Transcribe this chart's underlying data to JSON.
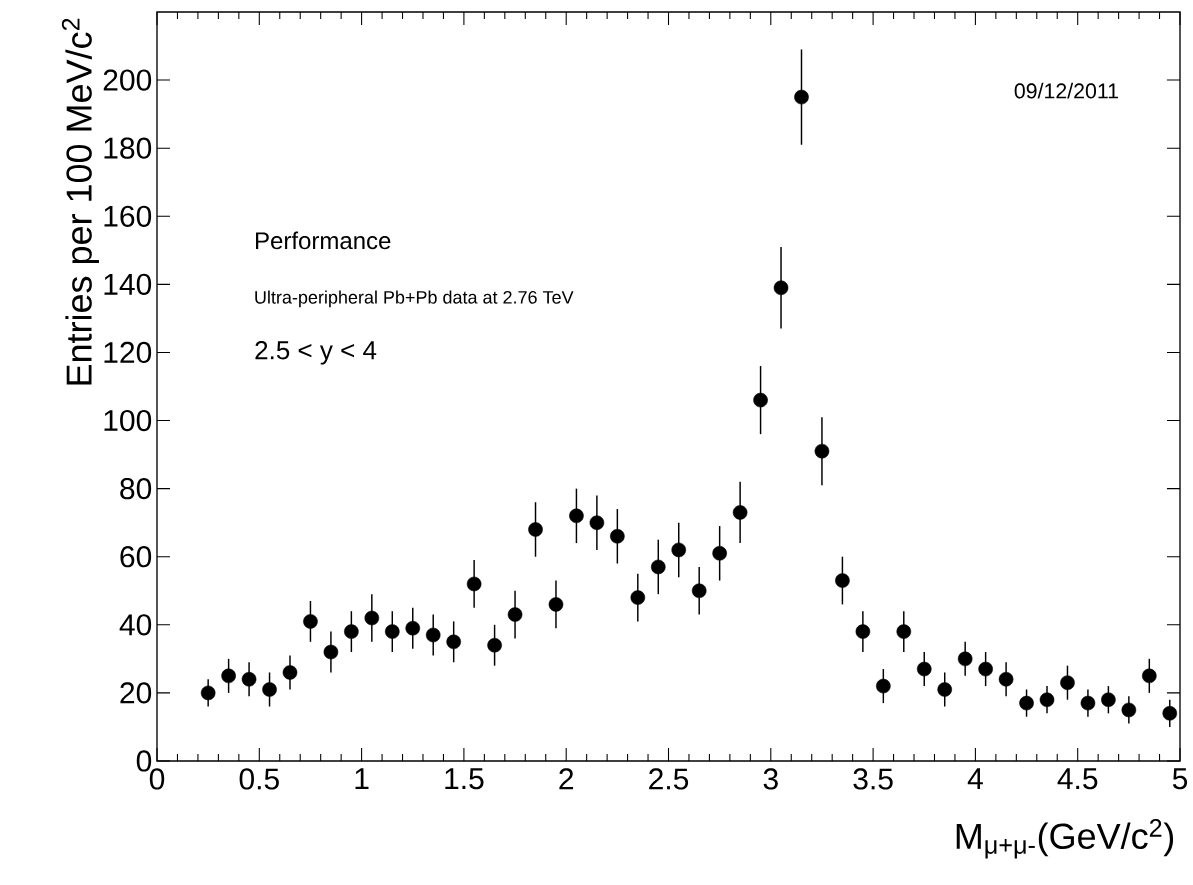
{
  "chart_data": {
    "type": "scatter",
    "xlabel": "M$_{μ+μ-}$(GeV/c$^{2}$)",
    "ylabel": "Entries per 100 MeV/c$^{2}$",
    "annotations": [
      "09/12/2011",
      "Performance",
      "Ultra-peripheral Pb+Pb data at 2.76 TeV",
      "2.5 < y < 4"
    ],
    "x": [
      0.25,
      0.35,
      0.45,
      0.55,
      0.65,
      0.75,
      0.85,
      0.95,
      1.05,
      1.15,
      1.25,
      1.35,
      1.45,
      1.55,
      1.65,
      1.75,
      1.85,
      1.95,
      2.05,
      2.15,
      2.25,
      2.35,
      2.45,
      2.55,
      2.65,
      2.75,
      2.85,
      2.95,
      3.05,
      3.15,
      3.25,
      3.35,
      3.45,
      3.55,
      3.65,
      3.75,
      3.85,
      3.95,
      4.05,
      4.15,
      4.25,
      4.35,
      4.45,
      4.55,
      4.65,
      4.75,
      4.85,
      4.95
    ],
    "values": [
      20,
      25,
      24,
      21,
      26,
      41,
      32,
      38,
      42,
      38,
      39,
      37,
      35,
      52,
      34,
      43,
      68,
      46,
      72,
      70,
      66,
      48,
      57,
      62,
      50,
      61,
      73,
      106,
      139,
      195,
      91,
      53,
      38,
      22,
      38,
      27,
      21,
      30,
      27,
      24,
      17,
      18,
      23,
      17,
      18,
      15,
      25,
      14
    ],
    "errors": [
      4,
      5,
      5,
      5,
      5,
      6,
      6,
      6,
      7,
      6,
      6,
      6,
      6,
      7,
      6,
      7,
      8,
      7,
      8,
      8,
      8,
      7,
      8,
      8,
      7,
      8,
      9,
      10,
      12,
      14,
      10,
      7,
      6,
      5,
      6,
      5,
      5,
      5,
      5,
      5,
      4,
      4,
      5,
      4,
      4,
      4,
      5,
      4
    ],
    "color": "#000000",
    "marker": "circle",
    "xlim": [
      0,
      5
    ],
    "ylim": [
      0,
      220
    ],
    "xticks": [
      0,
      0.5,
      1,
      1.5,
      2,
      2.5,
      3,
      3.5,
      4,
      4.5,
      5
    ],
    "yticks": [
      0,
      20,
      40,
      60,
      80,
      100,
      120,
      140,
      160,
      180,
      200
    ]
  }
}
